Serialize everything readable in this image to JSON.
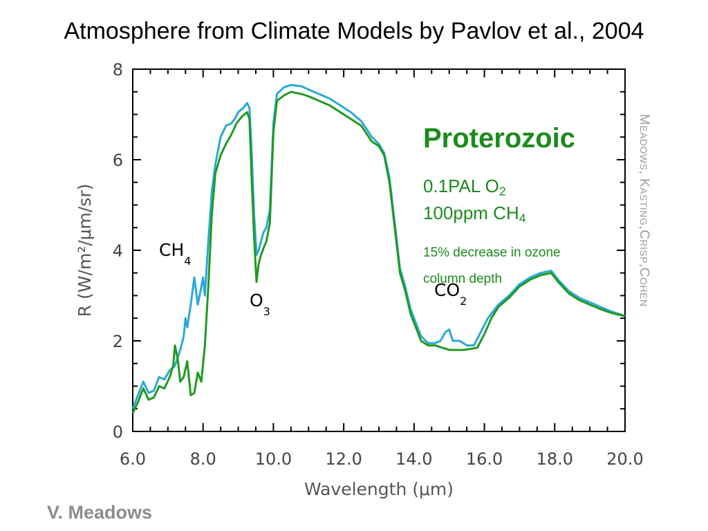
{
  "slide": {
    "title": "Atmosphere from Climate Models by Pavlov et al., 2004",
    "author": "V. Meadows",
    "credit_parts": [
      "M",
      "EADOWS",
      ", K",
      "ASTING",
      ",C",
      "RISP",
      ",C",
      "OHEN"
    ]
  },
  "annotations": {
    "epoch": "Proterozoic",
    "o2_label": "0.1PAL O",
    "o2_sub": "2",
    "ch4_label": "100ppm CH",
    "ch4_sub": "4",
    "ozone_line1": "15% decrease in ozone",
    "ozone_line2": "column depth"
  },
  "molecule_labels": {
    "ch4": {
      "base": "CH",
      "sub": "4"
    },
    "o3": {
      "base": "O",
      "sub": "3"
    },
    "co2": {
      "base": "CO",
      "sub": "2"
    }
  },
  "colors": {
    "series_reference": "#29a8d8",
    "series_proterozoic": "#1f9a1f",
    "annotation": "#1c8a1c"
  },
  "chart_data": {
    "type": "line",
    "xlabel": "Wavelength (μm)",
    "ylabel": "R (W/m²/μm/sr)",
    "xlim": [
      6.0,
      20.0
    ],
    "ylim": [
      0,
      8
    ],
    "xticks": [
      "6.0",
      "8.0",
      "10.0",
      "12.0",
      "14.0",
      "16.0",
      "18.0",
      "20.0"
    ],
    "yticks": [
      "0",
      "2",
      "4",
      "6",
      "8"
    ],
    "series": [
      {
        "color": "#29a8d8",
        "points": [
          [
            6.0,
            0.5
          ],
          [
            6.15,
            0.8
          ],
          [
            6.3,
            1.1
          ],
          [
            6.45,
            0.85
          ],
          [
            6.6,
            0.9
          ],
          [
            6.75,
            1.2
          ],
          [
            6.9,
            1.15
          ],
          [
            7.05,
            1.35
          ],
          [
            7.2,
            1.45
          ],
          [
            7.35,
            1.8
          ],
          [
            7.45,
            2.1
          ],
          [
            7.5,
            2.5
          ],
          [
            7.55,
            2.3
          ],
          [
            7.65,
            2.8
          ],
          [
            7.75,
            3.4
          ],
          [
            7.85,
            2.8
          ],
          [
            7.95,
            3.2
          ],
          [
            8.0,
            3.4
          ],
          [
            8.05,
            3.0
          ],
          [
            8.15,
            4.2
          ],
          [
            8.25,
            5.3
          ],
          [
            8.35,
            5.9
          ],
          [
            8.5,
            6.5
          ],
          [
            8.65,
            6.75
          ],
          [
            8.8,
            6.8
          ],
          [
            8.9,
            6.9
          ],
          [
            9.0,
            7.05
          ],
          [
            9.15,
            7.15
          ],
          [
            9.25,
            7.25
          ],
          [
            9.32,
            7.15
          ],
          [
            9.38,
            6.2
          ],
          [
            9.45,
            4.8
          ],
          [
            9.52,
            3.9
          ],
          [
            9.58,
            4.0
          ],
          [
            9.65,
            4.2
          ],
          [
            9.72,
            4.4
          ],
          [
            9.8,
            4.5
          ],
          [
            9.9,
            4.9
          ],
          [
            10.0,
            6.8
          ],
          [
            10.1,
            7.45
          ],
          [
            10.3,
            7.6
          ],
          [
            10.5,
            7.65
          ],
          [
            10.8,
            7.62
          ],
          [
            11.0,
            7.55
          ],
          [
            11.3,
            7.45
          ],
          [
            11.6,
            7.35
          ],
          [
            11.9,
            7.2
          ],
          [
            12.2,
            7.05
          ],
          [
            12.5,
            6.85
          ],
          [
            12.8,
            6.5
          ],
          [
            13.0,
            6.35
          ],
          [
            13.15,
            6.15
          ],
          [
            13.3,
            5.6
          ],
          [
            13.45,
            4.6
          ],
          [
            13.6,
            3.6
          ],
          [
            13.75,
            3.2
          ],
          [
            13.9,
            2.7
          ],
          [
            14.05,
            2.4
          ],
          [
            14.2,
            2.1
          ],
          [
            14.4,
            1.95
          ],
          [
            14.6,
            1.95
          ],
          [
            14.75,
            2.0
          ],
          [
            14.9,
            2.2
          ],
          [
            15.0,
            2.25
          ],
          [
            15.1,
            2.0
          ],
          [
            15.3,
            2.0
          ],
          [
            15.5,
            1.9
          ],
          [
            15.7,
            1.9
          ],
          [
            15.9,
            2.2
          ],
          [
            16.1,
            2.5
          ],
          [
            16.4,
            2.8
          ],
          [
            16.7,
            3.0
          ],
          [
            17.0,
            3.25
          ],
          [
            17.3,
            3.4
          ],
          [
            17.6,
            3.5
          ],
          [
            17.9,
            3.55
          ],
          [
            18.1,
            3.35
          ],
          [
            18.4,
            3.1
          ],
          [
            18.7,
            2.95
          ],
          [
            19.0,
            2.85
          ],
          [
            19.3,
            2.75
          ],
          [
            19.6,
            2.65
          ],
          [
            19.8,
            2.6
          ],
          [
            20.0,
            2.55
          ]
        ]
      },
      {
        "color": "#1f9a1f",
        "points": [
          [
            6.0,
            0.4
          ],
          [
            6.15,
            0.65
          ],
          [
            6.3,
            0.95
          ],
          [
            6.45,
            0.7
          ],
          [
            6.6,
            0.75
          ],
          [
            6.75,
            1.0
          ],
          [
            6.9,
            0.95
          ],
          [
            7.05,
            1.2
          ],
          [
            7.15,
            1.45
          ],
          [
            7.2,
            1.9
          ],
          [
            7.28,
            1.6
          ],
          [
            7.35,
            1.1
          ],
          [
            7.45,
            1.2
          ],
          [
            7.55,
            1.55
          ],
          [
            7.65,
            0.8
          ],
          [
            7.75,
            0.85
          ],
          [
            7.85,
            1.3
          ],
          [
            7.95,
            1.1
          ],
          [
            8.05,
            1.9
          ],
          [
            8.15,
            3.2
          ],
          [
            8.25,
            4.8
          ],
          [
            8.35,
            5.7
          ],
          [
            8.5,
            6.1
          ],
          [
            8.65,
            6.35
          ],
          [
            8.8,
            6.55
          ],
          [
            8.95,
            6.8
          ],
          [
            9.1,
            6.95
          ],
          [
            9.25,
            7.05
          ],
          [
            9.32,
            6.9
          ],
          [
            9.38,
            5.6
          ],
          [
            9.45,
            4.3
          ],
          [
            9.52,
            3.3
          ],
          [
            9.58,
            3.7
          ],
          [
            9.65,
            3.9
          ],
          [
            9.72,
            4.05
          ],
          [
            9.8,
            4.2
          ],
          [
            9.9,
            4.6
          ],
          [
            10.0,
            6.6
          ],
          [
            10.1,
            7.3
          ],
          [
            10.3,
            7.42
          ],
          [
            10.5,
            7.5
          ],
          [
            10.8,
            7.45
          ],
          [
            11.0,
            7.4
          ],
          [
            11.3,
            7.3
          ],
          [
            11.6,
            7.2
          ],
          [
            11.9,
            7.05
          ],
          [
            12.2,
            6.9
          ],
          [
            12.5,
            6.75
          ],
          [
            12.8,
            6.4
          ],
          [
            13.0,
            6.3
          ],
          [
            13.15,
            6.1
          ],
          [
            13.3,
            5.5
          ],
          [
            13.45,
            4.5
          ],
          [
            13.6,
            3.5
          ],
          [
            13.75,
            3.1
          ],
          [
            13.9,
            2.6
          ],
          [
            14.05,
            2.3
          ],
          [
            14.2,
            2.0
          ],
          [
            14.4,
            1.9
          ],
          [
            14.6,
            1.9
          ],
          [
            14.8,
            1.85
          ],
          [
            15.0,
            1.8
          ],
          [
            15.2,
            1.8
          ],
          [
            15.4,
            1.8
          ],
          [
            15.6,
            1.82
          ],
          [
            15.8,
            1.85
          ],
          [
            16.0,
            2.15
          ],
          [
            16.2,
            2.5
          ],
          [
            16.4,
            2.75
          ],
          [
            16.7,
            2.95
          ],
          [
            17.0,
            3.2
          ],
          [
            17.3,
            3.35
          ],
          [
            17.6,
            3.45
          ],
          [
            17.9,
            3.5
          ],
          [
            18.1,
            3.3
          ],
          [
            18.4,
            3.05
          ],
          [
            18.7,
            2.9
          ],
          [
            19.0,
            2.8
          ],
          [
            19.3,
            2.7
          ],
          [
            19.6,
            2.62
          ],
          [
            19.8,
            2.58
          ],
          [
            20.0,
            2.55
          ]
        ]
      }
    ]
  }
}
